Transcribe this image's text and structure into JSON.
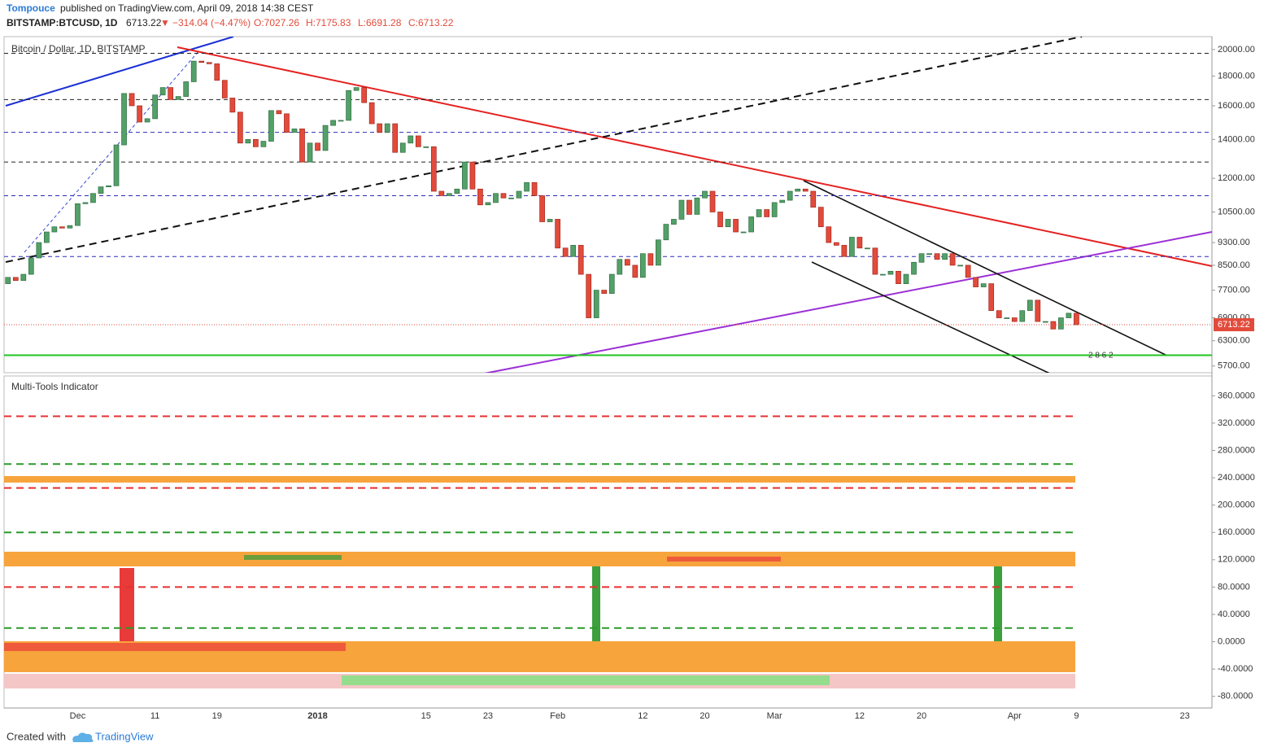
{
  "header": {
    "author": "Tompouce",
    "published": "published on TradingView.com, April 09, 2018 14:38 CEST",
    "symbol": "BITSTAMP:BTCUSD, 1D",
    "last": "6713.22",
    "arrow": "▼",
    "change": "−314.04 (−4.47%)",
    "open": "O:7027.26",
    "high": "H:7175.83",
    "low": "L:6691.28",
    "close": "C:6713.22"
  },
  "footer": {
    "created": "Created with",
    "brand": "TradingView"
  },
  "chart_data": [
    {
      "type": "candlestick",
      "title": "Bitcoin / Dollar, 1D, BITSTAMP",
      "log_scale": true,
      "up_color": "#53a068",
      "down_color": "#e24b3b",
      "categories": [
        null,
        null,
        null,
        null,
        null,
        null,
        null,
        null,
        null,
        "Dec",
        null,
        null,
        null,
        null,
        null,
        null,
        null,
        null,
        null,
        "11",
        null,
        null,
        null,
        null,
        null,
        null,
        null,
        "19",
        null,
        null,
        null,
        null,
        null,
        null,
        null,
        null,
        null,
        null,
        null,
        null,
        "2018",
        null,
        null,
        null,
        null,
        null,
        null,
        null,
        null,
        null,
        null,
        null,
        null,
        null,
        "15",
        null,
        null,
        null,
        null,
        null,
        null,
        null,
        "23",
        null,
        null,
        null,
        null,
        null,
        null,
        null,
        null,
        "Feb",
        null,
        null,
        null,
        null,
        null,
        null,
        null,
        null,
        null,
        null,
        "12",
        null,
        null,
        null,
        null,
        null,
        null,
        null,
        "20",
        null,
        null,
        null,
        null,
        null,
        null,
        null,
        null,
        "Mar",
        null,
        null,
        null,
        null,
        null,
        null,
        null,
        null,
        null,
        null,
        "12",
        null,
        null,
        null,
        null,
        null,
        null,
        null,
        "20",
        null,
        null,
        null,
        null,
        null,
        null,
        null,
        null,
        null,
        null,
        null,
        "Apr",
        null,
        null,
        null,
        null,
        null,
        null,
        null,
        "9",
        null,
        null,
        null,
        null,
        null,
        null,
        null,
        null,
        null,
        null,
        null,
        null,
        null,
        "23",
        null,
        null,
        null
      ],
      "open": [
        7900,
        8100,
        8000,
        8200,
        8750,
        9300,
        9700,
        9900,
        9850,
        9950,
        10850,
        10900,
        11300,
        11600,
        11650,
        13700,
        16800,
        16000,
        15000,
        15200,
        16700,
        17200,
        16400,
        16600,
        17600,
        19100,
        19000,
        18900,
        17700,
        16500,
        15600,
        13800,
        14000,
        13600,
        13900,
        15700,
        15500,
        14400,
        14600,
        12800,
        13800,
        13400,
        14800,
        15100,
        15100,
        17000,
        17200,
        16200,
        14900,
        14400,
        14900,
        13300,
        13800,
        14200,
        13600,
        13600,
        11400,
        11200,
        11300,
        11500,
        12800,
        11500,
        10800,
        10900,
        11300,
        11100,
        11100,
        11400,
        11800,
        11200,
        10100,
        10200,
        9100,
        8800,
        9200,
        8200,
        6900,
        7700,
        7600,
        8200,
        8700,
        8500,
        8100,
        8900,
        8500,
        9400,
        10000,
        10200,
        11000,
        10400,
        11100,
        11400,
        10500,
        9900,
        10200,
        9700,
        9700,
        10300,
        10600,
        10300,
        10900,
        11000,
        11400,
        11500,
        11400,
        10700,
        9900,
        9300,
        9200,
        8800,
        9500,
        9100,
        9100,
        8200,
        8200,
        8300,
        7900,
        8200,
        8600,
        8900,
        8900,
        8700,
        8900,
        8500,
        8500,
        8100,
        7800,
        7900,
        7100,
        6900,
        6900,
        6800,
        7100,
        7400,
        6800,
        6800,
        6600,
        6900,
        7027.26,
        null,
        null,
        null,
        null,
        null,
        null,
        null,
        null,
        null,
        null,
        null,
        null,
        null,
        null,
        null,
        null,
        null
      ],
      "close": [
        8100,
        8000,
        8200,
        8750,
        9300,
        9700,
        9900,
        9850,
        9950,
        10850,
        10900,
        11300,
        11600,
        11650,
        13700,
        16800,
        16000,
        15000,
        15200,
        16700,
        17200,
        16400,
        16600,
        17600,
        19100,
        19000,
        18900,
        17700,
        16500,
        15600,
        13800,
        14000,
        13600,
        13900,
        15700,
        15500,
        14400,
        14600,
        12800,
        13800,
        13400,
        14800,
        15100,
        15100,
        17000,
        17200,
        16200,
        14900,
        14400,
        14900,
        13300,
        13800,
        14200,
        13600,
        13600,
        11400,
        11200,
        11300,
        11500,
        12800,
        11500,
        10800,
        10900,
        11300,
        11100,
        11100,
        11400,
        11800,
        11200,
        10100,
        10200,
        9100,
        8800,
        9200,
        8200,
        6900,
        7700,
        7600,
        8200,
        8700,
        8500,
        8100,
        8900,
        8500,
        9400,
        10000,
        10200,
        11000,
        10400,
        11100,
        11400,
        10500,
        9900,
        10200,
        9700,
        9700,
        10300,
        10600,
        10300,
        10900,
        11000,
        11400,
        11500,
        11400,
        10700,
        9900,
        9300,
        9200,
        8800,
        9500,
        9100,
        9100,
        8200,
        8200,
        8300,
        7900,
        8200,
        8600,
        8900,
        8900,
        8700,
        8900,
        8500,
        8500,
        8100,
        7800,
        7900,
        7100,
        6900,
        6900,
        6800,
        7100,
        7400,
        6800,
        6800,
        6600,
        6900,
        7027.26,
        6713.22,
        null,
        null,
        null,
        null,
        null,
        null,
        null,
        null,
        null,
        null,
        null,
        null,
        null,
        null,
        null,
        null,
        null
      ],
      "last_label": "6713.22",
      "ylim": [
        5550,
        21050
      ],
      "yticks": [
        {
          "value": 20000,
          "label": "20000.00"
        },
        {
          "value": 18000,
          "label": "18000.00"
        },
        {
          "value": 16000,
          "label": "16000.00"
        },
        {
          "value": 14000,
          "label": "14000.00"
        },
        {
          "value": 12000,
          "label": "12000.00"
        },
        {
          "value": 10500,
          "label": "10500.00"
        },
        {
          "value": 9300,
          "label": "9300.00"
        },
        {
          "value": 8500,
          "label": "8500.00"
        },
        {
          "value": 7700,
          "label": "7700.00"
        },
        {
          "value": 6900,
          "label": "6900.00"
        },
        {
          "value": 6300,
          "label": "6300.00"
        },
        {
          "value": 5700,
          "label": "5700.00"
        }
      ],
      "hlines": [
        {
          "value": 19700,
          "color": "#222"
        },
        {
          "value": 16400,
          "color": "#222"
        },
        {
          "value": 14400,
          "color": "#2b2bb8"
        },
        {
          "value": 12800,
          "color": "#222"
        },
        {
          "value": 11200,
          "color": "#2b2bb8"
        },
        {
          "value": 8800,
          "color": "#2b2bb8"
        },
        {
          "value": 5950,
          "color": "#22c322"
        }
      ],
      "badge": "2 8 6 2"
    },
    {
      "type": "levels",
      "title": "Multi-Tools Indicator",
      "ylim": [
        -97,
        389
      ],
      "yticks": [
        {
          "value": 360,
          "label": "360.0000"
        },
        {
          "value": 320,
          "label": "320.0000"
        },
        {
          "value": 280,
          "label": "280.0000"
        },
        {
          "value": 240,
          "label": "240.0000"
        },
        {
          "value": 200,
          "label": "200.0000"
        },
        {
          "value": 160,
          "label": "160.0000"
        },
        {
          "value": 120,
          "label": "120.0000"
        },
        {
          "value": 80,
          "label": "80.0000"
        },
        {
          "value": 40,
          "label": "40.0000"
        },
        {
          "value": 0,
          "label": "0.0000"
        },
        {
          "value": -40,
          "label": "-40.0000"
        },
        {
          "value": -80,
          "label": "-80.0000"
        }
      ],
      "levels": [
        {
          "value": 330,
          "color": "#e53030"
        },
        {
          "value": 260,
          "color": "#2a9a2a"
        },
        {
          "value": 225,
          "color": "#e53030"
        },
        {
          "value": 160,
          "color": "#2a9a2a"
        },
        {
          "value": 80,
          "color": "#e53030"
        },
        {
          "value": 20,
          "color": "#2a9a2a"
        }
      ]
    }
  ]
}
